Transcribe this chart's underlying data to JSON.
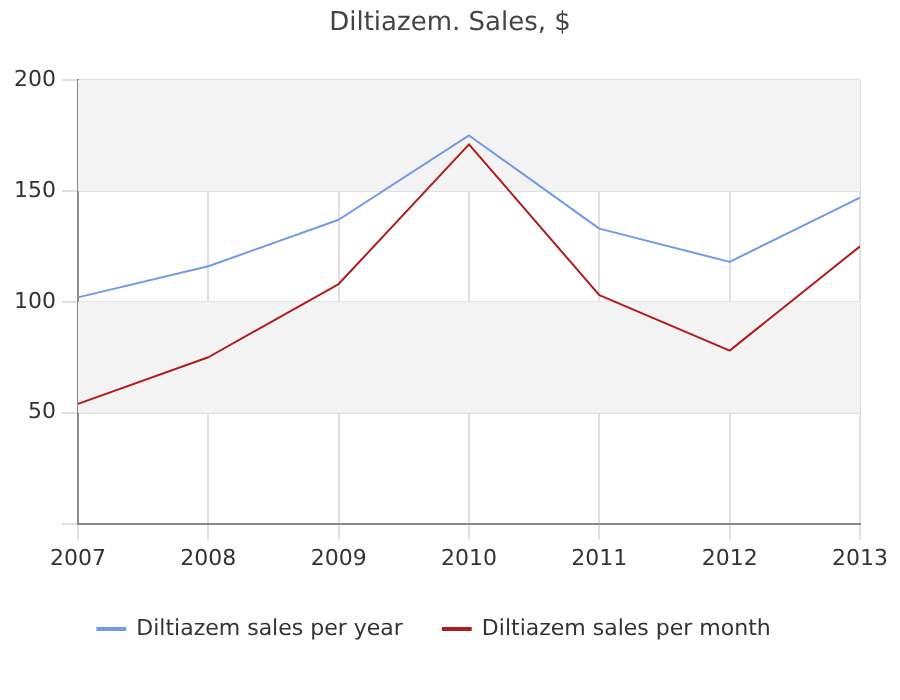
{
  "chart_data": {
    "type": "line",
    "title": "Diltiazem. Sales, $",
    "x": [
      2007,
      2008,
      2009,
      2010,
      2011,
      2012,
      2013
    ],
    "series": [
      {
        "name": "Diltiazem sales per year",
        "color": "#6f9be8",
        "values": [
          102,
          116,
          137,
          175,
          133,
          118,
          147
        ]
      },
      {
        "name": "Diltiazem sales per month",
        "color": "#b01c1c",
        "values": [
          54,
          75,
          108,
          171,
          103,
          78,
          125
        ]
      }
    ],
    "xlim": [
      2007,
      2013
    ],
    "xticks": [
      2007,
      2008,
      2009,
      2010,
      2011,
      2012,
      2013
    ],
    "ylim": [
      0,
      200
    ],
    "yticks": [
      {
        "value": 0,
        "label": null
      },
      50,
      100,
      150,
      200
    ],
    "bands": [
      {
        "axis": "y",
        "from": 50,
        "to": 100,
        "color": "#f3f3f3"
      },
      {
        "axis": "y",
        "from": 150,
        "to": 200,
        "color": "#f3f3f3"
      }
    ],
    "grid": true,
    "legend": "bottom",
    "marker": "none",
    "line_style": "solid"
  }
}
